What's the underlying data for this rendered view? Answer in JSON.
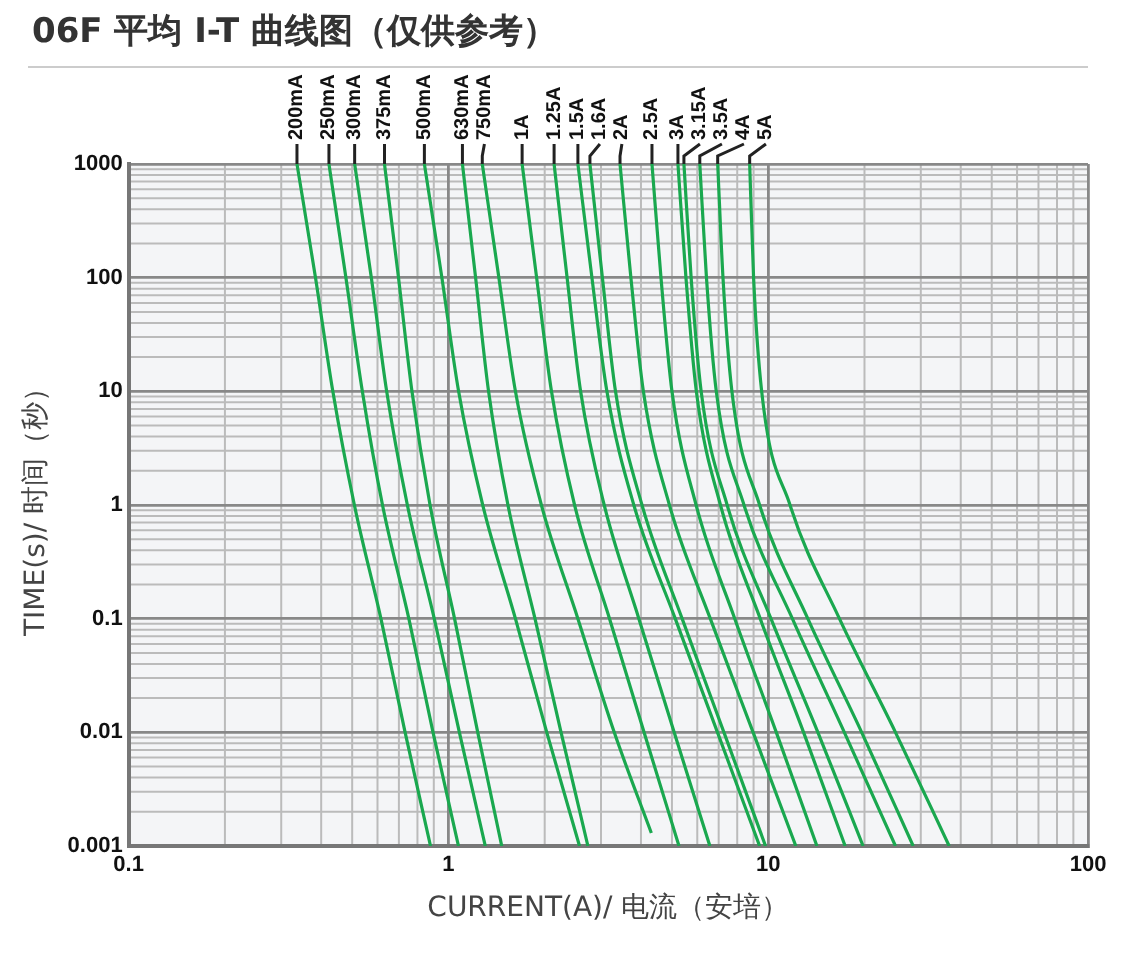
{
  "chart_data": {
    "type": "line",
    "title": "06F 平均 I-T 曲线图（仅供参考）",
    "xlabel": "CURRENT(A)/ 电流（安培）",
    "ylabel": "TIME(s)/ 时间（秒）",
    "log": "xy",
    "xlim": [
      0.1,
      100
    ],
    "xticks": [
      0.1,
      1,
      10,
      100
    ],
    "ylim": [
      0.001,
      1000
    ],
    "yticks": [
      0.001,
      0.01,
      0.1,
      1,
      10,
      100,
      1000
    ],
    "grid": true,
    "legend": false,
    "marker": "none",
    "line_style": "solid",
    "series": [
      {
        "name": "200mA",
        "color": "#1aa84f",
        "x": [
          0.336,
          0.384,
          0.435,
          0.508,
          0.615,
          0.732,
          0.879
        ],
        "values": [
          1000,
          100,
          10,
          1,
          0.1,
          0.01,
          0.001
        ]
      },
      {
        "name": "250mA",
        "color": "#1aa84f",
        "x": [
          0.423,
          0.478,
          0.538,
          0.622,
          0.752,
          0.895,
          1.075
        ],
        "values": [
          1000,
          100,
          10,
          1,
          0.1,
          0.01,
          0.001
        ]
      },
      {
        "name": "300mA",
        "color": "#1aa84f",
        "x": [
          0.509,
          0.574,
          0.641,
          0.744,
          0.903,
          1.082,
          1.304
        ],
        "values": [
          1000,
          100,
          10,
          1,
          0.1,
          0.01,
          0.001
        ]
      },
      {
        "name": "375mA",
        "color": "#1aa84f",
        "x": [
          0.631,
          0.698,
          0.769,
          0.876,
          1.045,
          1.235,
          1.468
        ],
        "values": [
          1000,
          100,
          10,
          1,
          0.1,
          0.01,
          0.001
        ]
      },
      {
        "name": "500mA",
        "color": "#1aa84f",
        "x": [
          0.841,
          0.954,
          1.076,
          1.28,
          1.62,
          2.03,
          2.57
        ],
        "values": [
          1000,
          100,
          10,
          1,
          0.1,
          0.01,
          0.001
        ]
      },
      {
        "name": "630mA",
        "color": "#1aa84f",
        "x": [
          1.106,
          1.216,
          1.335,
          1.535,
          1.865,
          2.25,
          2.73
        ],
        "values": [
          1000,
          100,
          10,
          1,
          0.1,
          0.01,
          0.001
        ]
      },
      {
        "name": "750mA",
        "color": "#1aa84f",
        "x": [
          1.276,
          1.438,
          1.62,
          1.953,
          2.54,
          3.3,
          4.31
        ],
        "values": [
          1000,
          100,
          10,
          1,
          0.1,
          0.01,
          0.0013
        ]
      },
      {
        "name": "1A",
        "color": "#1aa84f",
        "x": [
          1.7,
          1.887,
          2.1,
          2.48,
          3.19,
          4.09,
          5.26
        ],
        "values": [
          1000,
          100,
          10,
          1,
          0.1,
          0.01,
          0.001
        ]
      },
      {
        "name": "1.25A",
        "color": "#1aa84f",
        "x": [
          2.14,
          2.35,
          2.59,
          3.07,
          3.94,
          5.08,
          6.57
        ],
        "values": [
          1000,
          100,
          10,
          1,
          0.1,
          0.01,
          0.001
        ]
      },
      {
        "name": "1.5A",
        "color": "#1aa84f",
        "x": [
          2.54,
          2.81,
          3.13,
          3.8,
          5.12,
          6.94,
          9.4
        ],
        "values": [
          1000,
          100,
          10,
          1,
          0.1,
          0.01,
          0.001
        ]
      },
      {
        "name": "1.6A",
        "color": "#1aa84f",
        "x": [
          2.77,
          3.03,
          3.33,
          4.03,
          5.38,
          7.27,
          9.81
        ],
        "values": [
          1000,
          100,
          10,
          1,
          0.1,
          0.01,
          0.001
        ]
      },
      {
        "name": "2A",
        "color": "#1aa84f",
        "x": [
          3.44,
          3.72,
          4.07,
          4.91,
          6.59,
          8.97,
          12.2
        ],
        "values": [
          1000,
          100,
          10,
          1,
          0.1,
          0.01,
          0.001
        ]
      },
      {
        "name": "2.5A",
        "color": "#1aa84f",
        "x": [
          4.33,
          4.62,
          5.0,
          5.95,
          7.86,
          10.6,
          14.2
        ],
        "values": [
          1000,
          100,
          10,
          1,
          0.1,
          0.01,
          0.001
        ]
      },
      {
        "name": "3A",
        "color": "#1aa84f",
        "x": [
          5.22,
          5.53,
          5.96,
          7.09,
          9.44,
          12.9,
          17.4
        ],
        "values": [
          1000,
          100,
          10,
          1,
          0.1,
          0.01,
          0.001
        ]
      },
      {
        "name": "3.15A",
        "color": "#1aa84f",
        "x": [
          5.45,
          5.74,
          6.17,
          7.44,
          10.2,
          14.3,
          19.8
        ],
        "values": [
          1000,
          100,
          10,
          1,
          0.1,
          0.01,
          0.001
        ]
      },
      {
        "name": "3.5A",
        "color": "#1aa84f",
        "x": [
          6.11,
          6.41,
          6.88,
          8.4,
          11.9,
          17.3,
          25.0
        ],
        "values": [
          1000,
          100,
          10,
          1,
          0.1,
          0.01,
          0.001
        ]
      },
      {
        "name": "4A",
        "color": "#1aa84f",
        "x": [
          6.95,
          7.22,
          7.7,
          9.4,
          13.3,
          19.6,
          28.4
        ],
        "values": [
          1000,
          100,
          10,
          1,
          0.1,
          0.01,
          0.001
        ]
      },
      {
        "name": "5A",
        "color": "#1aa84f",
        "x": [
          8.75,
          9.0,
          9.54,
          11.7,
          16.7,
          25.0,
          36.8
        ],
        "values": [
          1000,
          100,
          10,
          1,
          0.1,
          0.01,
          0.001
        ]
      }
    ]
  }
}
